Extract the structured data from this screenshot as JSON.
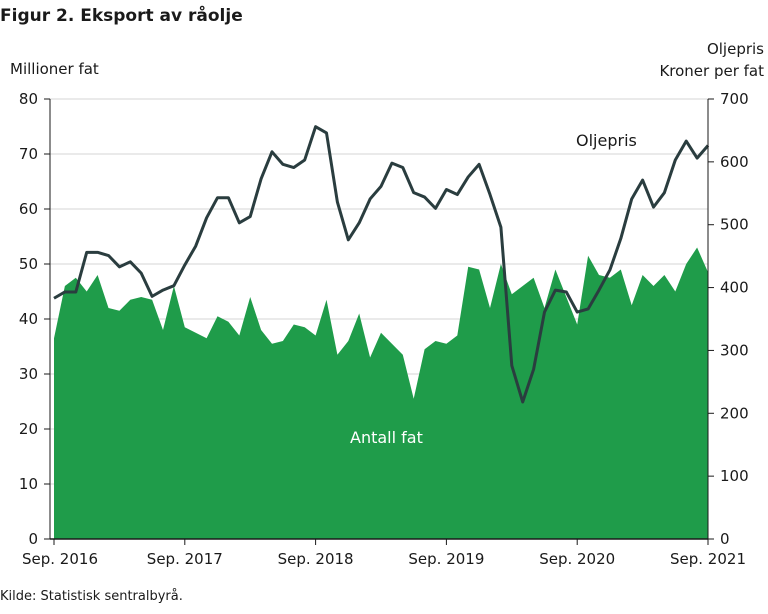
{
  "title": "Figur 2. Eksport av råolje",
  "source": "Kilde: Statistisk sentralbyrå.",
  "chart_data": {
    "type": "area+line",
    "title": "Figur 2. Eksport av råolje",
    "x_tick_labels": [
      "Sep. 2016",
      "Sep. 2017",
      "Sep. 2018",
      "Sep. 2019",
      "Sep. 2020",
      "Sep. 2021"
    ],
    "x_tick_index": [
      0,
      12,
      24,
      36,
      48,
      60
    ],
    "y_left": {
      "label": "Millioner fat",
      "ylim": [
        0,
        80
      ],
      "ticks": [
        0,
        10,
        20,
        30,
        40,
        50,
        60,
        70,
        80
      ]
    },
    "y_right": {
      "label_line1": "Oljepris",
      "label_line2": "Kroner per fat",
      "ylim": [
        0,
        700
      ],
      "ticks": [
        0,
        100,
        200,
        300,
        400,
        500,
        600,
        700
      ]
    },
    "grid": true,
    "colors": {
      "area": "#1f9c4a",
      "line": "#2a3d3f",
      "grid": "#d6d6d6",
      "axis": "#1a1a1a"
    },
    "series": [
      {
        "name": "Antall fat",
        "axis": "left",
        "kind": "area",
        "values": [
          36.5,
          46,
          47.5,
          45,
          48,
          42,
          41.5,
          43.5,
          44,
          43.5,
          38,
          46,
          38.5,
          37.5,
          36.5,
          40.5,
          39.5,
          37,
          44,
          38,
          35.5,
          36,
          39,
          38.5,
          37,
          43.5,
          33.5,
          36,
          41,
          33,
          37.5,
          35.5,
          33.5,
          25.5,
          34.5,
          36,
          35.5,
          37,
          49.5,
          49,
          42,
          50,
          44.5,
          46,
          47.5,
          42,
          49,
          44,
          39,
          51.5,
          48,
          47.5,
          49,
          42.5,
          48,
          46,
          48,
          45,
          50,
          53,
          48.5
        ]
      },
      {
        "name": "Oljepris",
        "axis": "right",
        "kind": "line",
        "values": [
          383,
          393,
          393,
          456,
          456,
          451,
          433,
          441,
          423,
          386,
          396,
          403,
          436,
          466,
          511,
          543,
          543,
          503,
          513,
          573,
          616,
          596,
          591,
          603,
          656,
          646,
          536,
          476,
          503,
          541,
          561,
          598,
          591,
          551,
          544,
          526,
          556,
          548,
          576,
          596,
          548,
          496,
          276,
          218,
          270,
          361,
          396,
          393,
          361,
          366,
          396,
          428,
          478,
          541,
          571,
          528,
          551,
          603,
          633,
          606,
          626
        ]
      }
    ],
    "annotations": [
      {
        "text": "Oljepris",
        "series": "Oljepris"
      },
      {
        "text": "Antall fat",
        "series": "Antall fat"
      }
    ]
  }
}
